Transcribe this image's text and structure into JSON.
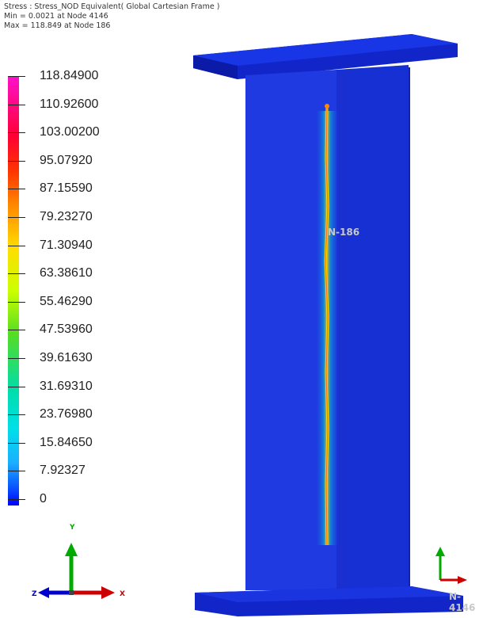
{
  "header": {
    "title": "Stress : Stress_NOD Equivalent( Global Cartesian Frame )",
    "min_line": "Min = 0.0021 at Node 4146",
    "max_line": "Max = 118.849 at Node 186"
  },
  "legend": {
    "labels": [
      "118.84900",
      "110.92600",
      "103.00200",
      "95.07920",
      "87.15590",
      "79.23270",
      "71.30940",
      "63.38610",
      "55.46290",
      "47.53960",
      "39.61630",
      "31.69310",
      "23.76980",
      "15.84650",
      "7.92327",
      "0"
    ],
    "colors": [
      "#ff11cc",
      "#ff0033",
      "#ff3300",
      "#ff8800",
      "#ffdd00",
      "#ccff00",
      "#55dd22",
      "#00ddaa",
      "#00e0e8",
      "#1ab0ff",
      "#0a50ff",
      "#0000ff"
    ]
  },
  "model": {
    "node_max_label": "N-186",
    "node_min_label": "N-4146",
    "structure_color": "#1428d8"
  },
  "triad": {
    "x_label": "X",
    "y_label": "Y",
    "z_label": "Z",
    "x_color": "#cc0000",
    "y_color": "#00aa00",
    "z_color": "#0000cc"
  }
}
